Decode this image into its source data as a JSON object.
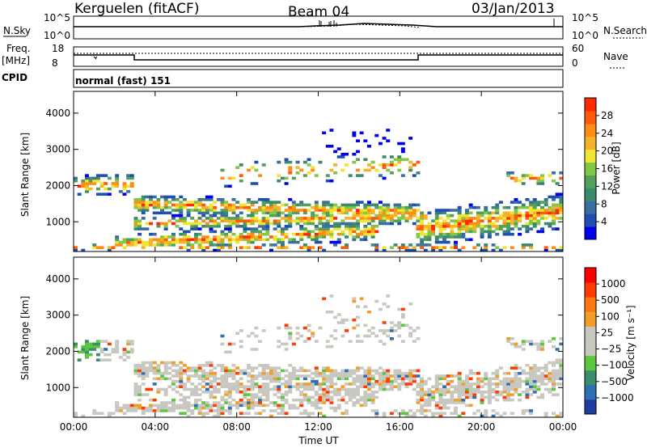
{
  "header": {
    "station": "Kerguelen (fitACF)",
    "beam": "Beam 04",
    "date": "03/Jan/2013"
  },
  "params": {
    "nsky_label": "N.Sky",
    "nsky_ticks": [
      "10^5",
      "10^0"
    ],
    "nsearch_label": "N.Search",
    "nsearch_ticks": [
      "10^5",
      "10^0"
    ],
    "freq_label_1": "Freq.",
    "freq_label_2": "[MHz]",
    "freq_ticks": [
      "18",
      "8"
    ],
    "nave_label": "Nave",
    "nave_ticks": [
      "60",
      "0"
    ],
    "cpid_label": "CPID",
    "cpid_value": "normal (fast) 151"
  },
  "chart_data": [
    {
      "type": "heatmap",
      "title": "",
      "ylabel": "Slant Range [km]",
      "xlabel": "",
      "xlim": [
        "00:00",
        "00:00"
      ],
      "ylim": [
        180,
        4600
      ],
      "y_ticks": [
        "4000",
        "3000",
        "2000",
        "1000"
      ],
      "colorbar": {
        "label": "Power [dB]",
        "ticks": [
          "28",
          "24",
          "20",
          "16",
          "12",
          "8",
          "4"
        ],
        "range": [
          0,
          30
        ],
        "colors": [
          "#0000ee",
          "#1e50b4",
          "#3a6ea0",
          "#3c8a6e",
          "#52a05a",
          "#82c846",
          "#f0e632",
          "#f5b428",
          "#ff8c14",
          "#ff5a0a",
          "#ff2800"
        ]
      }
    },
    {
      "type": "heatmap",
      "title": "",
      "ylabel": "Slant Range [km]",
      "xlabel": "Time UT",
      "x_ticks": [
        "00:00",
        "04:00",
        "08:00",
        "12:00",
        "16:00",
        "20:00",
        "00:00"
      ],
      "ylim": [
        180,
        4600
      ],
      "y_ticks": [
        "4000",
        "3000",
        "2000",
        "1000"
      ],
      "colorbar": {
        "label": "Velocity [m s⁻¹]",
        "ticks": [
          "1000",
          "500",
          "100",
          "25",
          "−25",
          "−100",
          "−500",
          "−1000"
        ],
        "colors": [
          "#1e3ca0",
          "#2f6fb4",
          "#3c8c6e",
          "#5ac83c",
          "#c8c8c0",
          "#c8c8c0",
          "#f0a028",
          "#ff7814",
          "#ff3c00",
          "#ff0000"
        ]
      }
    }
  ]
}
